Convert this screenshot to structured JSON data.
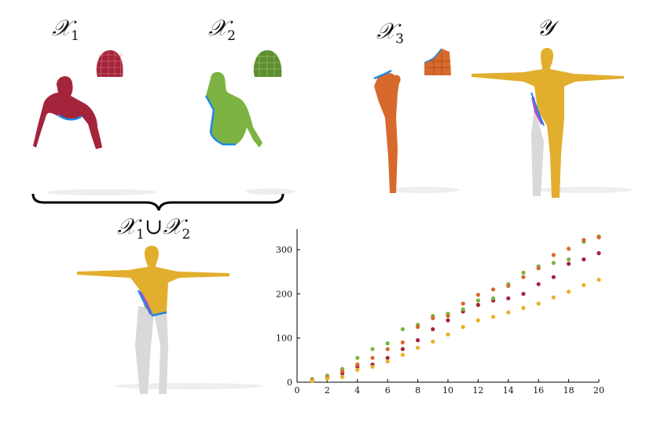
{
  "labels": {
    "x1_main": "𝒳",
    "x1_sub": "1",
    "x2_main": "𝒳",
    "x2_sub": "2",
    "x3_main": "𝒳",
    "x3_sub": "3",
    "y_main": "𝒴",
    "union_a": "𝒳",
    "union_a_sub": "1",
    "union_op": "∪",
    "union_b": "𝒳",
    "union_b_sub": "2"
  },
  "colors": {
    "x1": "#a4243b",
    "x2": "#7cb342",
    "x3": "#d8692c",
    "y": "#e2ae2e",
    "boundary": "#1e88e5",
    "ghost": "#d9d9d9",
    "overlap": "#b24bd6"
  },
  "chart_data": {
    "type": "scatter",
    "xlim": [
      0,
      20
    ],
    "ylim": [
      0,
      350
    ],
    "xticks": [
      0,
      2,
      4,
      6,
      8,
      10,
      12,
      14,
      16,
      18,
      20
    ],
    "yticks": [
      0,
      100,
      200,
      300
    ],
    "grid": false,
    "series": [
      {
        "color": "#a4243b",
        "x": [
          1,
          2,
          3,
          4,
          5,
          6,
          7,
          8,
          9,
          10,
          11,
          12,
          13,
          14,
          15,
          16,
          17,
          18,
          19,
          20
        ],
        "y": [
          5,
          10,
          20,
          35,
          40,
          55,
          75,
          95,
          120,
          140,
          160,
          175,
          185,
          190,
          200,
          222,
          238,
          268,
          278,
          292
        ]
      },
      {
        "color": "#7cb342",
        "x": [
          1,
          2,
          3,
          4,
          5,
          6,
          7,
          8,
          9,
          10,
          11,
          12,
          13,
          14,
          15,
          16,
          17,
          18,
          19,
          20
        ],
        "y": [
          7,
          15,
          30,
          55,
          75,
          88,
          120,
          130,
          150,
          155,
          165,
          185,
          190,
          222,
          248,
          262,
          270,
          278,
          318,
          330
        ]
      },
      {
        "color": "#d8692c",
        "x": [
          1,
          2,
          3,
          4,
          5,
          6,
          7,
          8,
          9,
          10,
          11,
          12,
          13,
          14,
          15,
          16,
          17,
          18,
          19,
          20
        ],
        "y": [
          5,
          10,
          25,
          40,
          55,
          75,
          90,
          125,
          145,
          150,
          178,
          198,
          210,
          218,
          238,
          258,
          288,
          302,
          322,
          328
        ]
      },
      {
        "color": "#e8b224",
        "x": [
          1,
          2,
          3,
          4,
          5,
          6,
          7,
          8,
          9,
          10,
          11,
          12,
          13,
          14,
          15,
          16,
          17,
          18,
          19,
          20
        ],
        "y": [
          3,
          8,
          12,
          28,
          35,
          47,
          62,
          78,
          92,
          108,
          125,
          140,
          148,
          158,
          168,
          178,
          192,
          205,
          220,
          232
        ]
      }
    ]
  }
}
